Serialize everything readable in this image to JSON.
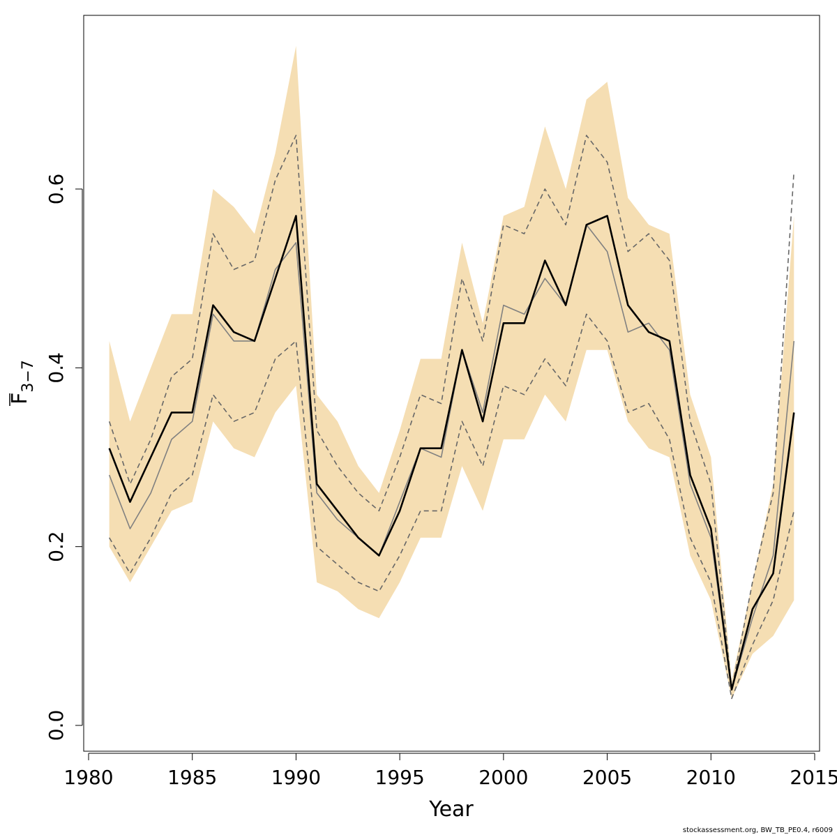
{
  "chart_data": {
    "type": "line",
    "title": "",
    "xlabel": "Year",
    "ylabel_main": "F",
    "ylabel_sub": "3−7",
    "xlim": [
      1980,
      2015
    ],
    "ylim": [
      0.0,
      0.75
    ],
    "x_ticks": [
      1980,
      1985,
      1990,
      1995,
      2000,
      2005,
      2010,
      2015
    ],
    "y_ticks": [
      "0.0",
      "0.2",
      "0.4",
      "0.6"
    ],
    "x": [
      1981,
      1982,
      1983,
      1984,
      1985,
      1986,
      1987,
      1988,
      1989,
      1990,
      1991,
      1992,
      1993,
      1994,
      1995,
      1996,
      1997,
      1998,
      1999,
      2000,
      2001,
      2002,
      2003,
      2004,
      2005,
      2006,
      2007,
      2008,
      2009,
      2010,
      2011,
      2012,
      2013,
      2014
    ],
    "series": [
      {
        "role": "band",
        "color": "#F5DEB3",
        "lower": [
          0.2,
          0.16,
          0.2,
          0.24,
          0.25,
          0.34,
          0.31,
          0.3,
          0.35,
          0.38,
          0.16,
          0.15,
          0.13,
          0.12,
          0.16,
          0.21,
          0.21,
          0.29,
          0.24,
          0.32,
          0.32,
          0.37,
          0.34,
          0.42,
          0.42,
          0.34,
          0.31,
          0.3,
          0.19,
          0.14,
          0.03,
          0.08,
          0.1,
          0.14
        ],
        "upper": [
          0.43,
          0.34,
          0.4,
          0.46,
          0.46,
          0.6,
          0.58,
          0.55,
          0.64,
          0.76,
          0.37,
          0.34,
          0.29,
          0.26,
          0.33,
          0.41,
          0.41,
          0.54,
          0.45,
          0.57,
          0.58,
          0.67,
          0.6,
          0.7,
          0.72,
          0.59,
          0.56,
          0.55,
          0.37,
          0.3,
          0.05,
          0.16,
          0.27,
          0.57
        ]
      },
      {
        "role": "main",
        "color": "#000000",
        "values": [
          0.31,
          0.25,
          0.3,
          0.35,
          0.35,
          0.47,
          0.44,
          0.43,
          0.5,
          0.57,
          0.27,
          0.24,
          0.21,
          0.19,
          0.24,
          0.31,
          0.31,
          0.42,
          0.34,
          0.45,
          0.45,
          0.52,
          0.47,
          0.56,
          0.57,
          0.47,
          0.44,
          0.43,
          0.28,
          0.22,
          0.04,
          0.13,
          0.17,
          0.35
        ]
      },
      {
        "role": "secondary",
        "color": "#808080",
        "values": [
          0.28,
          0.22,
          0.26,
          0.32,
          0.34,
          0.46,
          0.43,
          0.43,
          0.51,
          0.54,
          0.26,
          0.23,
          0.21,
          0.19,
          0.25,
          0.31,
          0.3,
          0.42,
          0.35,
          0.47,
          0.46,
          0.5,
          0.47,
          0.56,
          0.53,
          0.44,
          0.45,
          0.42,
          0.27,
          0.21,
          0.04,
          0.12,
          0.19,
          0.43
        ]
      },
      {
        "role": "dashed-upper",
        "color": "#666666",
        "values": [
          0.34,
          0.27,
          0.32,
          0.39,
          0.41,
          0.55,
          0.51,
          0.52,
          0.61,
          0.66,
          0.33,
          0.29,
          0.26,
          0.24,
          0.3,
          0.37,
          0.36,
          0.5,
          0.43,
          0.56,
          0.55,
          0.6,
          0.56,
          0.66,
          0.63,
          0.53,
          0.55,
          0.52,
          0.34,
          0.27,
          0.04,
          0.16,
          0.26,
          0.62
        ]
      },
      {
        "role": "dashed-lower",
        "color": "#666666",
        "values": [
          0.21,
          0.17,
          0.21,
          0.26,
          0.28,
          0.37,
          0.34,
          0.35,
          0.41,
          0.43,
          0.2,
          0.18,
          0.16,
          0.15,
          0.19,
          0.24,
          0.24,
          0.34,
          0.29,
          0.38,
          0.37,
          0.41,
          0.38,
          0.46,
          0.43,
          0.35,
          0.36,
          0.32,
          0.21,
          0.16,
          0.03,
          0.09,
          0.14,
          0.24
        ]
      }
    ],
    "grid": false,
    "legend": "none"
  },
  "footer": {
    "note": "stockassessment.org, BW_TB_PE0.4, r6009"
  }
}
